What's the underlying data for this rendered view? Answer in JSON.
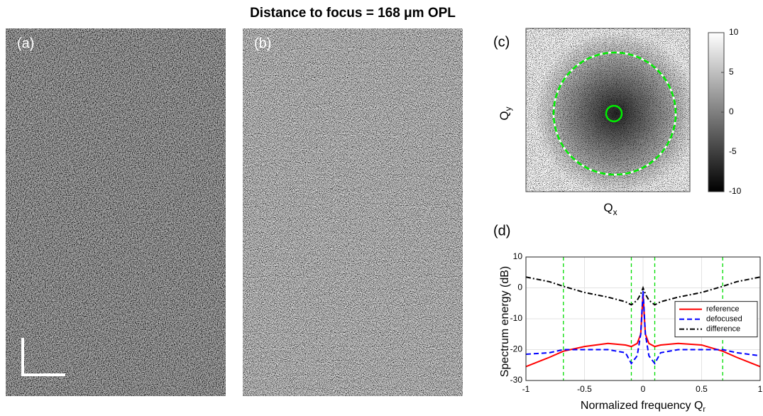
{
  "title": "Distance to focus = 168 μm OPL",
  "panels": {
    "a": "(a)",
    "b": "(b)",
    "c": "(c)",
    "d": "(d)"
  },
  "panel_c": {
    "ylabel": {
      "main": "Q",
      "sub": "y"
    },
    "xlabel": {
      "main": "Q",
      "sub": "x"
    },
    "colorbar": {
      "lim": [
        -10,
        10
      ],
      "ticks": [
        10,
        5,
        0,
        -5,
        -10
      ]
    }
  },
  "chart_data": {
    "type": "line",
    "xlabel": {
      "main": "Normalized frequency Q",
      "sub": "r"
    },
    "ylabel": "Spectrum energy (dB)",
    "x": [
      -1,
      -0.8,
      -0.68,
      -0.5,
      -0.3,
      -0.15,
      -0.1,
      -0.05,
      -0.02,
      0,
      0.02,
      0.05,
      0.1,
      0.15,
      0.3,
      0.5,
      0.68,
      0.8,
      1
    ],
    "series": [
      {
        "name": "reference",
        "color": "#ff0000",
        "style": "solid",
        "values": [
          -25.5,
          -22.5,
          -20.5,
          -19,
          -18,
          -18.5,
          -19,
          -18,
          -15,
          -2,
          -15,
          -18,
          -19,
          -18.5,
          -18,
          -18.5,
          -20.5,
          -22.5,
          -25.5
        ]
      },
      {
        "name": "defocused",
        "color": "#0000ff",
        "style": "dashed",
        "values": [
          -21.5,
          -21,
          -20,
          -20,
          -20,
          -21,
          -24.5,
          -22,
          -15,
          -1,
          -15,
          -22,
          -24.5,
          -21,
          -20,
          -20,
          -20,
          -21,
          -22
        ]
      },
      {
        "name": "difference",
        "color": "#000000",
        "style": "dashdot",
        "values": [
          3.5,
          2,
          0.5,
          -1.5,
          -3,
          -4.5,
          -5.5,
          -4,
          -2,
          0,
          -2,
          -4,
          -5.5,
          -4.5,
          -3,
          -1.5,
          0.5,
          2,
          3.5
        ]
      }
    ],
    "vlines": {
      "color": "#00dd00",
      "x": [
        -0.68,
        -0.1,
        0.1,
        0.68
      ]
    },
    "xlim": [
      -1,
      1
    ],
    "xticks": [
      -1,
      -0.5,
      0,
      0.5,
      1
    ],
    "ylim": [
      -30,
      10
    ],
    "yticks": [
      -30,
      -20,
      -10,
      0,
      10
    ],
    "grid": true,
    "legend": "right"
  }
}
